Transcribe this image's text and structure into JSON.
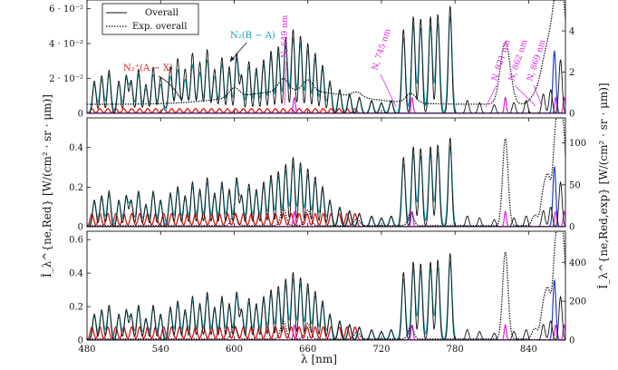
{
  "chart_data": {
    "type": "line",
    "x_range": [
      480,
      870
    ],
    "x_ticks": [
      480,
      540,
      600,
      660,
      720,
      780,
      840
    ],
    "x_tick_labels": [
      "480",
      "540",
      "600",
      "660",
      "720",
      "780",
      "840"
    ],
    "xlabel": "λ [nm]",
    "ylabel_left": "Î_λ^{ne,Red} [W/(cm² · sr · μm)]",
    "ylabel_right": "Î_λ^{ne,Red,exp} [W/(cm² · sr · μm)]",
    "legend": {
      "placement": "top-left",
      "entries": [
        {
          "label": "Overall",
          "style": "solid"
        },
        {
          "label": "Exp. overall",
          "style": "dotted"
        }
      ]
    },
    "colors": {
      "overall": "#111111",
      "experiment": "#111111",
      "n2_band": "#1aa0b0",
      "n2_plus_band": "#e02020",
      "atomic_N": "#e020e0",
      "blue_band": "#2040d0"
    },
    "panels": [
      {
        "name": "top",
        "ylim_left": [
          0,
          0.065
        ],
        "left_ticks": [
          0,
          0.02,
          0.04,
          0.06
        ],
        "left_tick_labels": [
          "0",
          "2 · 10⁻²",
          "4 · 10⁻²",
          "6 · 10⁻²"
        ],
        "ylim_right": [
          0,
          5.5
        ],
        "right_ticks": [
          0,
          2,
          4
        ],
        "right_tick_labels": [
          "0",
          "2",
          "4"
        ]
      },
      {
        "name": "middle",
        "ylim_left": [
          0,
          0.55
        ],
        "left_ticks": [
          0,
          0.2,
          0.4
        ],
        "left_tick_labels": [
          "0",
          "0.2",
          "0.4"
        ],
        "ylim_right": [
          0,
          130
        ],
        "right_ticks": [
          0,
          50,
          100
        ],
        "right_tick_labels": [
          "0",
          "50",
          "100"
        ]
      },
      {
        "name": "bottom",
        "ylim_left": [
          0,
          0.65
        ],
        "left_ticks": [
          0,
          0.2,
          0.4,
          0.6
        ],
        "left_tick_labels": [
          "0",
          "0.2",
          "0.4",
          "0.6"
        ],
        "ylim_right": [
          0,
          560
        ],
        "right_ticks": [
          0,
          200,
          400
        ],
        "right_tick_labels": [
          "0",
          "200",
          "400"
        ]
      }
    ],
    "annotations": [
      {
        "text": "N₂(B − A)",
        "color": "cyan"
      },
      {
        "text": "N₂⁺(A − X)",
        "color": "red"
      },
      {
        "text": "N, 649 nm",
        "x": 649,
        "color": "magenta"
      },
      {
        "text": "N, 745 nm",
        "x": 745,
        "color": "magenta"
      },
      {
        "text": "N, 821 nm",
        "x": 821,
        "color": "magenta"
      },
      {
        "text": "N, 862 nm",
        "x": 862,
        "color": "magenta"
      },
      {
        "text": "N, 869 nm",
        "x": 869,
        "color": "magenta"
      }
    ],
    "overall_peaks_nm": [
      [
        486,
        0.3
      ],
      [
        492,
        0.35
      ],
      [
        498,
        0.4
      ],
      [
        506,
        0.3
      ],
      [
        512,
        0.35
      ],
      [
        516,
        0.3
      ],
      [
        522,
        0.4
      ],
      [
        528,
        0.25
      ],
      [
        534,
        0.4
      ],
      [
        540,
        0.3
      ],
      [
        548,
        0.38
      ],
      [
        554,
        0.45
      ],
      [
        560,
        0.35
      ],
      [
        566,
        0.5
      ],
      [
        572,
        0.42
      ],
      [
        578,
        0.55
      ],
      [
        584,
        0.38
      ],
      [
        590,
        0.5
      ],
      [
        596,
        0.42
      ],
      [
        602,
        0.55
      ],
      [
        606,
        0.35
      ],
      [
        612,
        0.48
      ],
      [
        618,
        0.42
      ],
      [
        624,
        0.5
      ],
      [
        630,
        0.58
      ],
      [
        636,
        0.62
      ],
      [
        642,
        0.7
      ],
      [
        648,
        0.78
      ],
      [
        654,
        0.72
      ],
      [
        660,
        0.65
      ],
      [
        666,
        0.56
      ],
      [
        672,
        0.45
      ],
      [
        678,
        0.3
      ],
      [
        686,
        0.22
      ],
      [
        694,
        0.18
      ],
      [
        702,
        0.15
      ],
      [
        712,
        0.12
      ],
      [
        720,
        0.1
      ],
      [
        728,
        0.12
      ],
      [
        738,
        0.78
      ],
      [
        746,
        0.9
      ],
      [
        752,
        0.88
      ],
      [
        760,
        0.9
      ],
      [
        766,
        0.92
      ],
      [
        776,
        1.0
      ],
      [
        790,
        0.12
      ],
      [
        800,
        0.1
      ],
      [
        812,
        0.08
      ],
      [
        828,
        0.1
      ],
      [
        838,
        0.12
      ],
      [
        852,
        0.18
      ],
      [
        858,
        0.22
      ],
      [
        866,
        0.5
      ]
    ],
    "experiment_features_nm": [
      [
        600,
        0.15
      ],
      [
        640,
        0.2
      ],
      [
        660,
        0.18
      ],
      [
        700,
        0.08
      ],
      [
        744,
        0.15
      ],
      [
        821,
        1.0
      ],
      [
        845,
        0.12
      ],
      [
        852,
        0.35
      ],
      [
        856,
        0.5
      ],
      [
        862,
        1.0
      ],
      [
        866,
        0.9
      ],
      [
        869,
        0.7
      ]
    ]
  }
}
